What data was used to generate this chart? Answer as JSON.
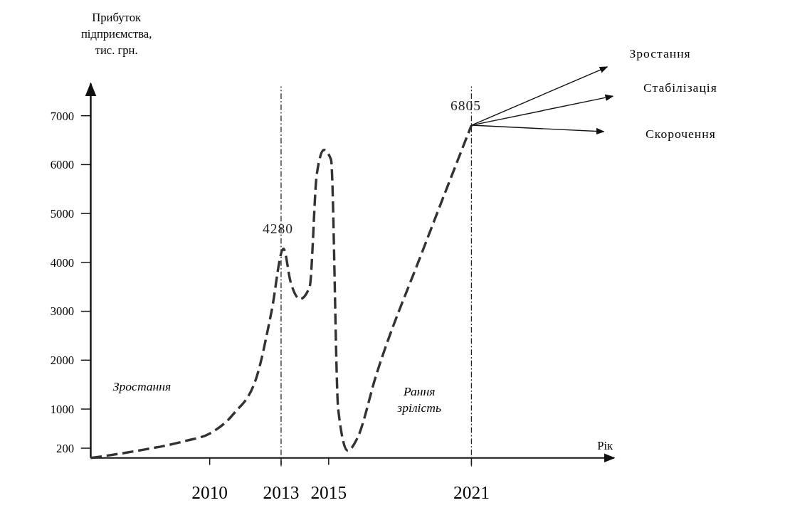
{
  "chart_data": {
    "type": "line",
    "ylabel": "Прибуток підприємства, тис. грн.",
    "xlabel": "Рік",
    "xlim": [
      2005,
      2027
    ],
    "xticks": [
      2010,
      2013,
      2015,
      2021
    ],
    "ylim": [
      0,
      7600
    ],
    "yticks": [
      200,
      1000,
      2000,
      3000,
      4000,
      5000,
      6000,
      7000
    ],
    "grid": false,
    "marker": "none",
    "line_style": "dashed",
    "series": [
      {
        "color": "#333333",
        "x": [
          2005,
          2007,
          2009,
          2010,
          2011,
          2012,
          2012.6,
          2013.1,
          2013.4,
          2013.8,
          2014.2,
          2014.5,
          2014.8,
          2015.1,
          2015.4,
          2015.8,
          2016.2,
          2017,
          2019,
          2021
        ],
        "values": [
          0,
          150,
          350,
          500,
          900,
          1700,
          3000,
          4280,
          3600,
          3250,
          3500,
          5800,
          6300,
          6100,
          1000,
          150,
          400,
          1700,
          4300,
          6805
        ]
      }
    ],
    "ref_lines": [
      {
        "axis": "x",
        "value": 2013,
        "line_style": "dashdot"
      },
      {
        "axis": "x",
        "value": 2021,
        "line_style": "dashdot"
      }
    ],
    "annotations": [
      "Зростання",
      "Рання зрілість",
      {
        "text": "4280",
        "x": 2013.1,
        "y": 4280
      },
      {
        "text": "6805",
        "x": 2021,
        "y": 6805
      },
      "Зростання",
      "Стабілізація",
      "Скорочення"
    ]
  }
}
